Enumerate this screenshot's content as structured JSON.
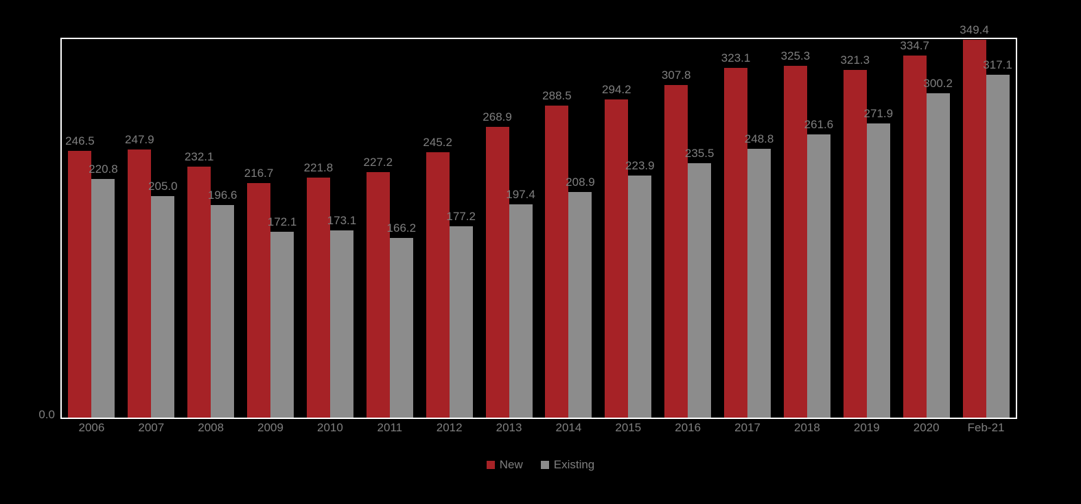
{
  "chart_data": {
    "type": "bar",
    "categories": [
      "2006",
      "2007",
      "2008",
      "2009",
      "2010",
      "2011",
      "2012",
      "2013",
      "2014",
      "2015",
      "2016",
      "2017",
      "2018",
      "2019",
      "2020",
      "Feb-21"
    ],
    "series": [
      {
        "name": "New",
        "color": "#a62226",
        "values": [
          246.5,
          247.9,
          232.1,
          216.7,
          221.8,
          227.2,
          245.2,
          268.9,
          288.5,
          294.2,
          307.8,
          323.1,
          325.3,
          321.3,
          334.7,
          349.4
        ]
      },
      {
        "name": "Existing",
        "color": "#8c8c8c",
        "values": [
          220.8,
          205.0,
          196.6,
          172.1,
          173.1,
          166.2,
          177.2,
          197.4,
          208.9,
          223.9,
          235.5,
          248.8,
          261.6,
          271.9,
          300.2,
          317.1
        ]
      }
    ],
    "title": "",
    "xlabel": "",
    "ylabel": "",
    "ylim": [
      0,
      350
    ],
    "y_zero_label": "0.0",
    "grid": false,
    "legend_position": "bottom",
    "data_labels": true,
    "label_color": "#7f7f7f",
    "axis_text_color": "#7f7f7f",
    "plot_border_color": "#ffffff",
    "background_color": "#000000"
  }
}
